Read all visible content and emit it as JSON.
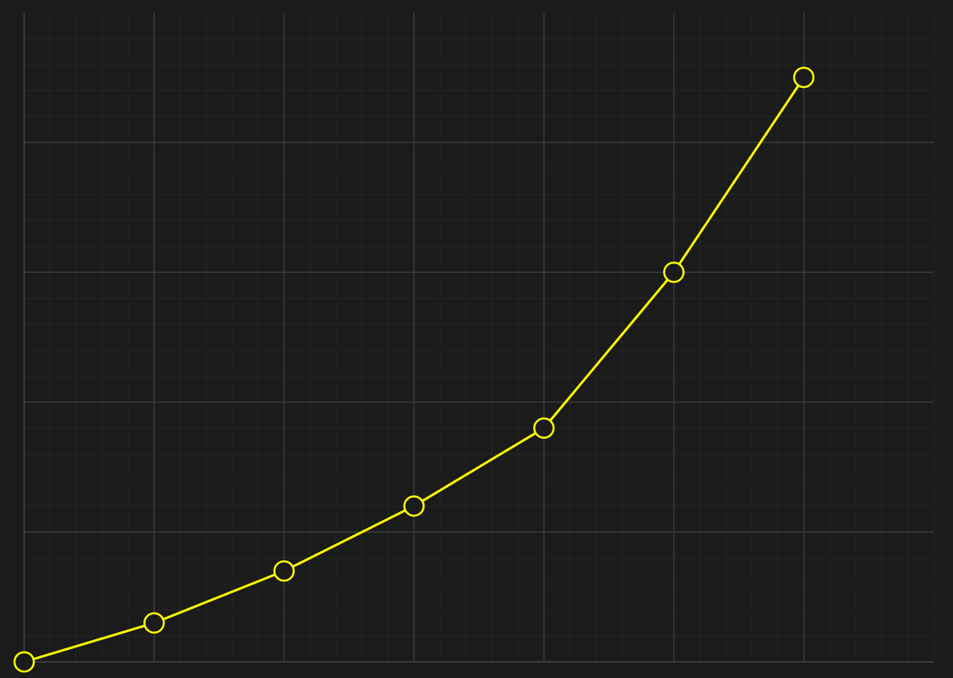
{
  "colors": {
    "background": "#1b1b1b",
    "series": "#ffff00",
    "grid_major": "#3b3b3b",
    "grid_minor": "#262626"
  },
  "chart_data": {
    "type": "line",
    "title": "",
    "xlabel": "",
    "ylabel": "",
    "grid": true,
    "legend": "none",
    "x": [
      0,
      1,
      2,
      3,
      4,
      5,
      6
    ],
    "xlim": [
      0,
      7
    ],
    "ylim": [
      0,
      5
    ],
    "x_major_step": 1,
    "y_major_step": 1,
    "minor_divisions": 5,
    "series": [
      {
        "values": [
          0.0,
          0.3,
          0.7,
          1.2,
          1.8,
          3.0,
          4.5
        ],
        "color": "#ffff00",
        "marker": "open-circle"
      }
    ]
  }
}
